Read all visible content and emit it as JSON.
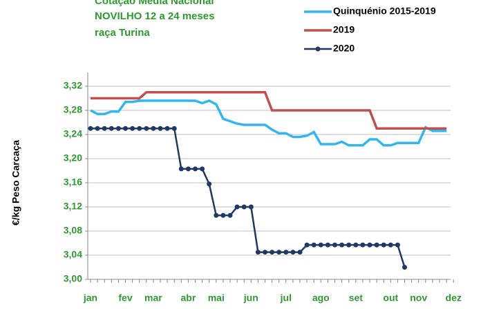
{
  "chart_data": {
    "type": "line",
    "title_lines": [
      "Cotação Média Nacional",
      "NOVILHO 12 a 24 meses",
      "raça Turina"
    ],
    "y_label": "€/kg Peso Carcaça",
    "categories": [
      "jan",
      null,
      null,
      null,
      null,
      "fev",
      null,
      null,
      null,
      "mar",
      null,
      null,
      null,
      null,
      "abr",
      null,
      null,
      null,
      "mai",
      null,
      null,
      null,
      null,
      "jun",
      null,
      null,
      null,
      null,
      "jul",
      null,
      null,
      null,
      null,
      "ago",
      null,
      null,
      null,
      null,
      "set",
      null,
      null,
      null,
      null,
      "out",
      null,
      null,
      null,
      "nov",
      null,
      null,
      null,
      null,
      "dez"
    ],
    "series": [
      {
        "name": "Quinquénio 2015-2019",
        "color": "#33b5f0",
        "marker": false,
        "values": [
          3.28,
          3.274,
          3.274,
          3.278,
          3.278,
          3.294,
          3.294,
          3.296,
          3.296,
          3.296,
          3.296,
          3.296,
          3.296,
          3.296,
          3.296,
          3.296,
          3.292,
          3.296,
          3.29,
          3.266,
          3.262,
          3.258,
          3.256,
          3.256,
          3.256,
          3.256,
          3.248,
          3.242,
          3.242,
          3.236,
          3.236,
          3.238,
          3.244,
          3.224,
          3.224,
          3.224,
          3.228,
          3.222,
          3.222,
          3.222,
          3.232,
          3.232,
          3.222,
          3.222,
          3.226,
          3.226,
          3.226,
          3.226,
          3.252,
          3.246,
          3.246,
          3.246,
          null
        ]
      },
      {
        "name": "2019",
        "color": "#c0504d",
        "marker": false,
        "values": [
          3.3,
          3.3,
          3.3,
          3.3,
          3.3,
          3.3,
          3.3,
          3.3,
          3.31,
          3.31,
          3.31,
          3.31,
          3.31,
          3.31,
          3.31,
          3.31,
          3.31,
          3.31,
          3.31,
          3.31,
          3.31,
          3.31,
          3.31,
          3.31,
          3.31,
          3.31,
          3.28,
          3.28,
          3.28,
          3.28,
          3.28,
          3.28,
          3.28,
          3.28,
          3.28,
          3.28,
          3.28,
          3.28,
          3.28,
          3.28,
          3.28,
          3.25,
          3.25,
          3.25,
          3.25,
          3.25,
          3.25,
          3.25,
          3.25,
          3.25,
          3.25,
          3.25,
          null
        ]
      },
      {
        "name": "2020",
        "color": "#1f3864",
        "marker": true,
        "values": [
          3.25,
          3.25,
          3.25,
          3.25,
          3.25,
          3.25,
          3.25,
          3.25,
          3.25,
          3.25,
          3.25,
          3.25,
          3.25,
          3.183,
          3.183,
          3.183,
          3.183,
          3.158,
          3.106,
          3.106,
          3.106,
          3.12,
          3.12,
          3.12,
          3.045,
          3.045,
          3.045,
          3.045,
          3.045,
          3.045,
          3.045,
          3.057,
          3.057,
          3.057,
          3.057,
          3.057,
          3.057,
          3.057,
          3.057,
          3.057,
          3.057,
          3.057,
          3.057,
          3.057,
          3.057,
          3.02,
          null,
          null,
          null,
          null,
          null,
          null,
          null
        ]
      }
    ],
    "ylim": [
      3.0,
      3.32
    ],
    "yticks": [
      {
        "value": 3.0,
        "label": "3,00"
      },
      {
        "value": 3.04,
        "label": "3,04"
      },
      {
        "value": 3.08,
        "label": "3,08"
      },
      {
        "value": 3.12,
        "label": "3,12"
      },
      {
        "value": 3.16,
        "label": "3,16"
      },
      {
        "value": 3.2,
        "label": "3,20"
      },
      {
        "value": 3.24,
        "label": "3,24"
      },
      {
        "value": 3.28,
        "label": "3,28"
      },
      {
        "value": 3.32,
        "label": "3,32"
      }
    ],
    "grid": true
  }
}
